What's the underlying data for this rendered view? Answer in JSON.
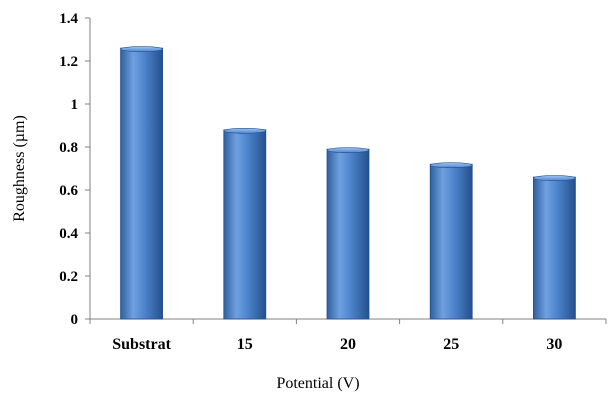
{
  "chart_data": {
    "type": "bar",
    "categories": [
      "Substrat",
      "15",
      "20",
      "25",
      "30"
    ],
    "values": [
      1.26,
      0.88,
      0.79,
      0.72,
      0.66
    ],
    "xlabel": "Potential  (V)",
    "ylabel": "Roughness (µm)",
    "ylim": [
      0,
      1.4
    ],
    "yticks": [
      "0",
      "0.2",
      "0.4",
      "0.6",
      "0.8",
      "1",
      "1.2",
      "1.4"
    ],
    "grid": false,
    "legend": "none",
    "bar_color": "#4a7fc8"
  }
}
